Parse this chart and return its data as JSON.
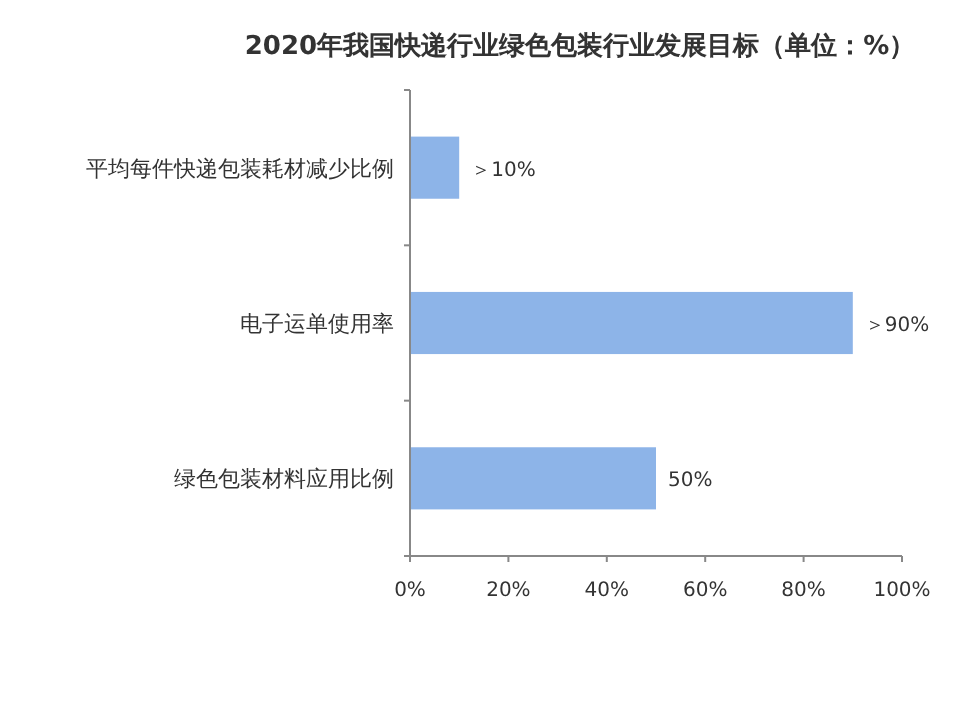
{
  "chart_data": {
    "type": "bar",
    "orientation": "horizontal",
    "title": "2020年我国快递行业绿色包装行业发展目标（单位：%）",
    "categories": [
      "平均每件快递包装耗材减少比例",
      "电子运单使用率",
      "绿色包装材料应用比例"
    ],
    "values": [
      10,
      90,
      50
    ],
    "value_labels": [
      "＞10%",
      "＞90%",
      "50%"
    ],
    "color": "#8db4e8",
    "xlim": [
      0,
      100
    ],
    "xticks": [
      {
        "value": 0,
        "label": "0%"
      },
      {
        "value": 20,
        "label": "20%"
      },
      {
        "value": 40,
        "label": "40%"
      },
      {
        "value": 60,
        "label": "60%"
      },
      {
        "value": 80,
        "label": "80%"
      },
      {
        "value": 100,
        "label": "100%"
      }
    ],
    "grid": false
  }
}
